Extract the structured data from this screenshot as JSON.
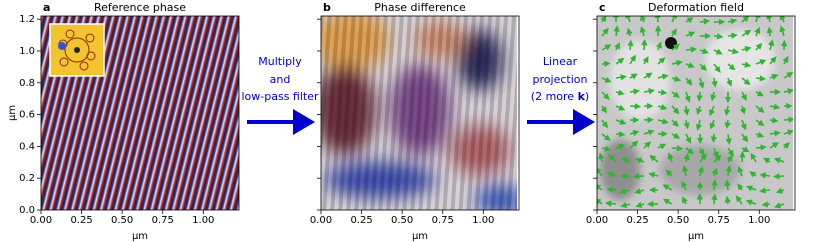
{
  "chart_data": [
    {
      "type": "image",
      "letter": "a",
      "title": "Reference phase",
      "xlabel": "µm",
      "ylabel": "µm",
      "xlim": [
        0,
        1.22
      ],
      "ylim": [
        0,
        1.22
      ],
      "xticks": [
        {
          "value": 0,
          "label": "0.00"
        },
        {
          "value": 0.25,
          "label": "0.25"
        },
        {
          "value": 0.5,
          "label": "0.50"
        },
        {
          "value": 0.75,
          "label": "0.75"
        },
        {
          "value": 1,
          "label": "1.00"
        }
      ],
      "yticks": [
        {
          "value": 0,
          "label": "0.0"
        },
        0.2,
        0.4,
        0.6,
        0.8,
        {
          "value": 1,
          "label": "1.0"
        },
        1.2
      ]
    },
    {
      "type": "image",
      "letter": "b",
      "title": "Phase difference",
      "xlabel": "µm",
      "xlim": [
        0,
        1.22
      ],
      "ylim": [
        0,
        1.22
      ],
      "xticks": [
        {
          "value": 0,
          "label": "0.00"
        },
        {
          "value": 0.25,
          "label": "0.25"
        },
        {
          "value": 0.5,
          "label": "0.50"
        },
        {
          "value": 0.75,
          "label": "0.75"
        },
        {
          "value": 1,
          "label": "1.00"
        }
      ],
      "yticks": [
        0,
        0.2,
        0.4,
        0.6,
        0.8,
        1,
        1.2
      ]
    },
    {
      "type": "image",
      "letter": "c",
      "title": "Deformation field",
      "xlabel": "µm",
      "xlim": [
        0,
        1.22
      ],
      "ylim": [
        0,
        1.22
      ],
      "xticks": [
        {
          "value": 0,
          "label": "0.00"
        },
        {
          "value": 0.25,
          "label": "0.25"
        },
        {
          "value": 0.5,
          "label": "0.50"
        },
        {
          "value": 0.75,
          "label": "0.75"
        },
        {
          "value": 1,
          "label": "1.00"
        }
      ],
      "yticks": [
        0,
        0.2,
        0.4,
        0.6,
        0.8,
        1,
        1.2
      ]
    }
  ],
  "arrows": [
    {
      "lines": [
        "Multiply",
        "and",
        "low-pass filter"
      ]
    },
    {
      "lines": [
        "Linear",
        "projection"
      ],
      "bold_line": [
        "(2 more ",
        "k",
        ")"
      ]
    }
  ]
}
